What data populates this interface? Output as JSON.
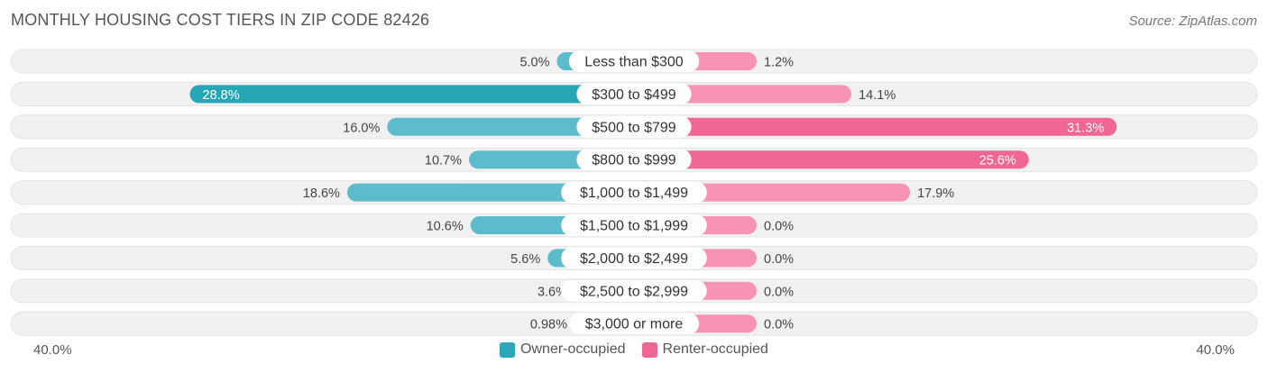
{
  "header": {
    "title": "MONTHLY HOUSING COST TIERS IN ZIP CODE 82426",
    "source": "Source: ZipAtlas.com"
  },
  "axis": {
    "left_label": "40.0%",
    "right_label": "40.0%"
  },
  "legend": {
    "owner_label": "Owner-occupied",
    "renter_label": "Renter-occupied"
  },
  "colors": {
    "owner": "#5cbccb",
    "owner_strong": "#26a7b6",
    "renter": "#f794b3",
    "renter_strong": "#f06794",
    "track": "#f1f1f1"
  },
  "chart_data": {
    "type": "bar",
    "orientation": "horizontal-diverging",
    "title": "MONTHLY HOUSING COST TIERS IN ZIP CODE 82426",
    "xlim": [
      -40,
      40
    ],
    "categories": [
      "Less than $300",
      "$300 to $499",
      "$500 to $799",
      "$800 to $999",
      "$1,000 to $1,499",
      "$1,500 to $1,999",
      "$2,000 to $2,499",
      "$2,500 to $2,999",
      "$3,000 or more"
    ],
    "series": [
      {
        "name": "Owner-occupied",
        "values": [
          5.0,
          28.8,
          16.0,
          10.7,
          18.6,
          10.6,
          5.6,
          3.6,
          0.98
        ],
        "labels": [
          "5.0%",
          "28.8%",
          "16.0%",
          "10.7%",
          "18.6%",
          "10.6%",
          "5.6%",
          "3.6%",
          "0.98%"
        ]
      },
      {
        "name": "Renter-occupied",
        "values": [
          1.2,
          14.1,
          31.3,
          25.6,
          17.9,
          0.0,
          0.0,
          0.0,
          0.0
        ],
        "labels": [
          "1.2%",
          "14.1%",
          "31.3%",
          "25.6%",
          "17.9%",
          "0.0%",
          "0.0%",
          "0.0%",
          "0.0%"
        ]
      }
    ],
    "legend_position": "bottom-center",
    "grid": false
  }
}
